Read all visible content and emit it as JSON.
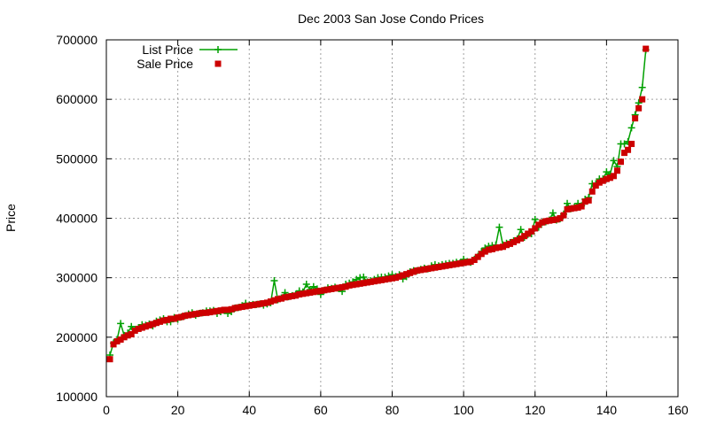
{
  "chart_data": {
    "type": "line",
    "title": "Dec 2003 San Jose Condo Prices",
    "xlabel": "",
    "ylabel": "Price",
    "xlim": [
      0,
      160
    ],
    "ylim": [
      100000,
      700000
    ],
    "xticks": [
      0,
      20,
      40,
      60,
      80,
      100,
      120,
      140,
      160
    ],
    "yticks": [
      100000,
      200000,
      300000,
      400000,
      500000,
      600000,
      700000
    ],
    "grid": true,
    "legend_position": "top-left",
    "series": [
      {
        "name": "List Price",
        "color": "#00a000",
        "marker": "plus",
        "style": "line+markers",
        "x": [
          1,
          2,
          3,
          4,
          5,
          6,
          7,
          8,
          9,
          10,
          11,
          12,
          13,
          14,
          15,
          16,
          17,
          18,
          19,
          20,
          21,
          22,
          23,
          24,
          25,
          26,
          27,
          28,
          29,
          30,
          31,
          32,
          33,
          34,
          35,
          36,
          37,
          38,
          39,
          40,
          41,
          42,
          43,
          44,
          45,
          46,
          47,
          48,
          49,
          50,
          51,
          52,
          53,
          54,
          55,
          56,
          57,
          58,
          59,
          60,
          61,
          62,
          63,
          64,
          65,
          66,
          67,
          68,
          69,
          70,
          71,
          72,
          73,
          74,
          75,
          76,
          77,
          78,
          79,
          80,
          81,
          82,
          83,
          84,
          85,
          86,
          87,
          88,
          89,
          90,
          91,
          92,
          93,
          94,
          95,
          96,
          97,
          98,
          99,
          100,
          101,
          102,
          103,
          104,
          105,
          106,
          107,
          108,
          109,
          110,
          111,
          112,
          113,
          114,
          115,
          116,
          117,
          118,
          119,
          120,
          121,
          122,
          123,
          124,
          125,
          126,
          127,
          128,
          129,
          130,
          131,
          132,
          133,
          134,
          135,
          136,
          137,
          138,
          139,
          140,
          141,
          142,
          143,
          144,
          145,
          146,
          147,
          148,
          149,
          150,
          151
        ],
        "values": [
          170000,
          190000,
          196000,
          223000,
          203000,
          207000,
          218000,
          213000,
          216000,
          221000,
          220000,
          222000,
          219000,
          227000,
          229000,
          231000,
          226000,
          226000,
          233000,
          230000,
          234000,
          236000,
          239000,
          241000,
          237000,
          240000,
          241000,
          244000,
          244000,
          245000,
          240000,
          243000,
          245000,
          240000,
          243000,
          249000,
          250000,
          253000,
          257000,
          254000,
          255000,
          255000,
          256000,
          254000,
          256000,
          258000,
          295000,
          263000,
          266000,
          275000,
          268000,
          270000,
          272000,
          278000,
          276000,
          289000,
          280000,
          285000,
          281000,
          272000,
          279000,
          283000,
          282000,
          284000,
          282000,
          277000,
          289000,
          291000,
          293000,
          297000,
          300000,
          301000,
          293000,
          295000,
          297000,
          300000,
          301000,
          301000,
          303000,
          305000,
          302000,
          305000,
          298000,
          302000,
          310000,
          312000,
          312000,
          314000,
          316000,
          315000,
          320000,
          322000,
          320000,
          322000,
          323000,
          324000,
          324000,
          326000,
          325000,
          331000,
          327000,
          326000,
          331000,
          336000,
          344000,
          350000,
          353000,
          354000,
          355000,
          385000,
          355000,
          358000,
          359000,
          362000,
          365000,
          381000,
          368000,
          373000,
          374000,
          398000,
          385000,
          393000,
          394000,
          397000,
          409000,
          397000,
          399000,
          407000,
          425000,
          416000,
          419000,
          425000,
          421000,
          432000,
          435000,
          458000,
          458000,
          466000,
          466000,
          478000,
          474000,
          497000,
          487000,
          525000,
          525000,
          529000,
          552000,
          574000,
          594000,
          620000,
          683000
        ]
      },
      {
        "name": "Sale Price",
        "color": "#cc0000",
        "marker": "square",
        "style": "points",
        "x": [
          1,
          2,
          3,
          4,
          5,
          6,
          7,
          8,
          9,
          10,
          11,
          12,
          13,
          14,
          15,
          16,
          17,
          18,
          19,
          20,
          21,
          22,
          23,
          24,
          25,
          26,
          27,
          28,
          29,
          30,
          31,
          32,
          33,
          34,
          35,
          36,
          37,
          38,
          39,
          40,
          41,
          42,
          43,
          44,
          45,
          46,
          47,
          48,
          49,
          50,
          51,
          52,
          53,
          54,
          55,
          56,
          57,
          58,
          59,
          60,
          61,
          62,
          63,
          64,
          65,
          66,
          67,
          68,
          69,
          70,
          71,
          72,
          73,
          74,
          75,
          76,
          77,
          78,
          79,
          80,
          81,
          82,
          83,
          84,
          85,
          86,
          87,
          88,
          89,
          90,
          91,
          92,
          93,
          94,
          95,
          96,
          97,
          98,
          99,
          100,
          101,
          102,
          103,
          104,
          105,
          106,
          107,
          108,
          109,
          110,
          111,
          112,
          113,
          114,
          115,
          116,
          117,
          118,
          119,
          120,
          121,
          122,
          123,
          124,
          125,
          126,
          127,
          128,
          129,
          130,
          131,
          132,
          133,
          134,
          135,
          136,
          137,
          138,
          139,
          140,
          141,
          142,
          143,
          144,
          145,
          146,
          147,
          148,
          149,
          150,
          151
        ],
        "values": [
          163000,
          188000,
          193000,
          196000,
          200000,
          203000,
          205000,
          211000,
          214000,
          216000,
          218000,
          220000,
          222000,
          224000,
          226000,
          228000,
          229000,
          231000,
          231000,
          233000,
          234000,
          236000,
          237000,
          238000,
          239000,
          240000,
          241000,
          241000,
          242000,
          243000,
          244000,
          245000,
          246000,
          246000,
          247000,
          249000,
          250000,
          251000,
          252000,
          253000,
          254000,
          255000,
          256000,
          257000,
          258000,
          260000,
          262000,
          264000,
          265000,
          267000,
          268000,
          269000,
          270000,
          272000,
          273000,
          274000,
          275000,
          276000,
          277000,
          278000,
          279000,
          280000,
          281000,
          282000,
          283000,
          284000,
          285000,
          287000,
          288000,
          289000,
          290000,
          291000,
          292000,
          293000,
          294000,
          295000,
          296000,
          297000,
          298000,
          299000,
          300000,
          302000,
          304000,
          306000,
          308000,
          310000,
          312000,
          313000,
          314000,
          315000,
          316000,
          317000,
          318000,
          319000,
          320000,
          321000,
          322000,
          323000,
          324000,
          325000,
          326000,
          327000,
          330000,
          335000,
          340000,
          344000,
          347000,
          348000,
          350000,
          351000,
          352000,
          355000,
          357000,
          360000,
          363000,
          366000,
          370000,
          374000,
          378000,
          383000,
          389000,
          393000,
          395000,
          396000,
          397000,
          398000,
          400000,
          405000,
          415000,
          416000,
          417000,
          418000,
          420000,
          428000,
          430000,
          445000,
          455000,
          460000,
          463000,
          466000,
          468000,
          471000,
          480000,
          495000,
          510000,
          515000,
          525000,
          568000,
          585000,
          600000,
          685000
        ]
      }
    ]
  }
}
